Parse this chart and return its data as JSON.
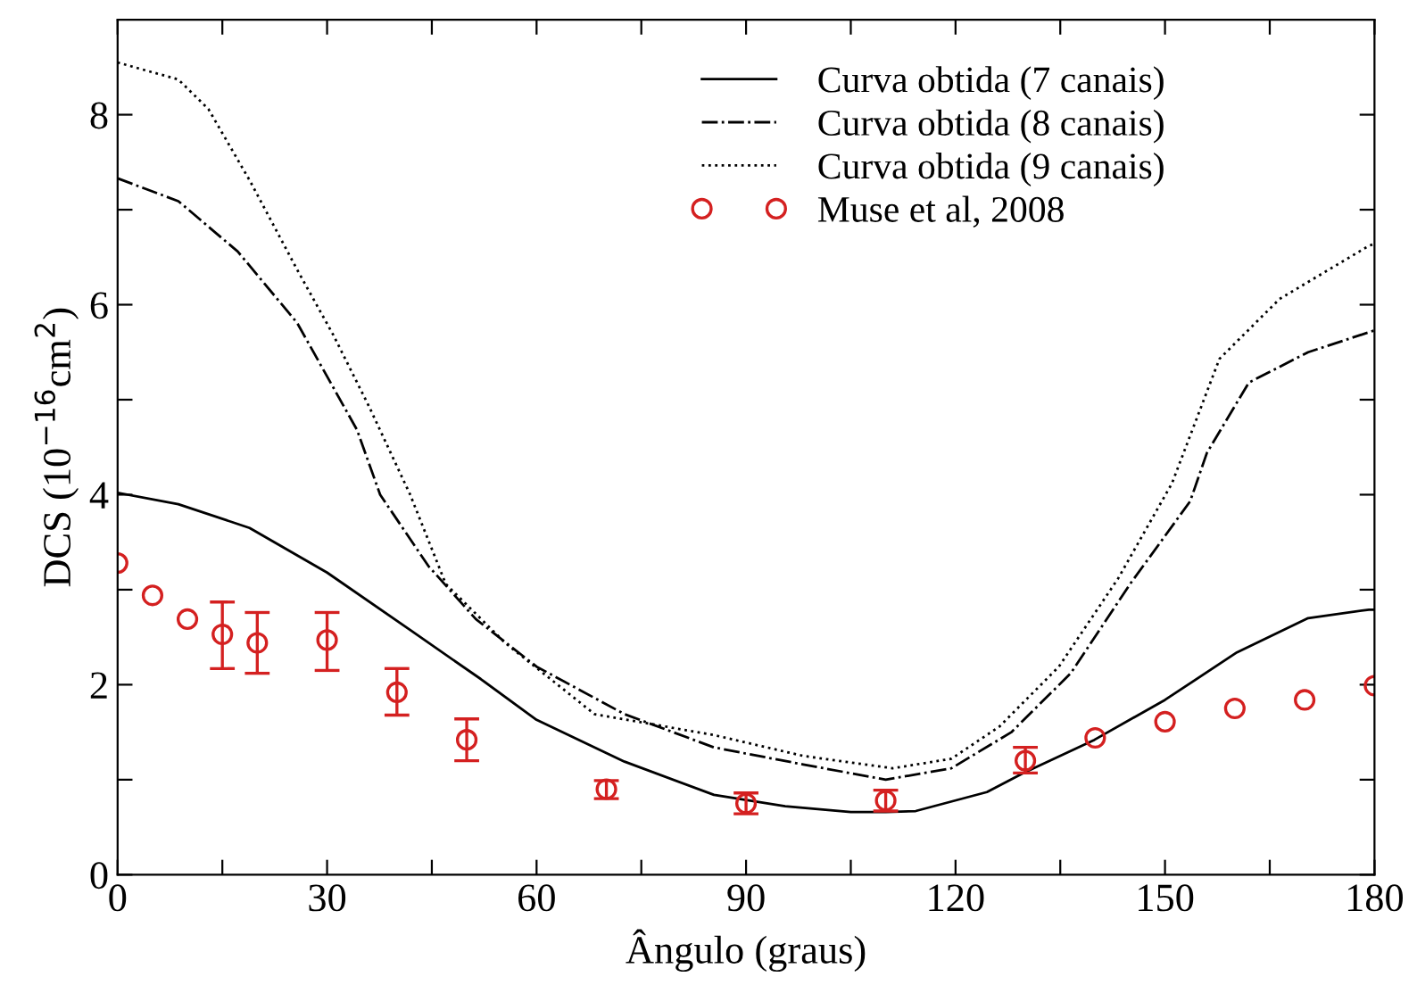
{
  "chart_data": {
    "type": "line",
    "xlabel": "Ângulo (graus)",
    "ylabel": "DCS (10$^{−16}$cm$^{2}$)",
    "xlim": [
      0,
      180
    ],
    "ylim": [
      0,
      9
    ],
    "xticks": [
      0,
      {
        "value": 15,
        "label": null
      },
      30,
      {
        "value": 45,
        "label": null
      },
      60,
      {
        "value": 75,
        "label": null
      },
      90,
      {
        "value": 105,
        "label": null
      },
      120,
      {
        "value": 135,
        "label": null
      },
      150,
      {
        "value": 165,
        "label": null
      },
      180
    ],
    "yticks": [
      0,
      {
        "value": 1,
        "label": null
      },
      2,
      {
        "value": 3,
        "label": null
      },
      4,
      {
        "value": 5,
        "label": null
      },
      6,
      {
        "value": 7,
        "label": null
      },
      8
    ],
    "legend": "top right",
    "grid": false,
    "series": [
      {
        "name": "Curva obtida (7 canais)",
        "line_style": "solid",
        "color": "#000000",
        "x": [
          0,
          8.7,
          18.9,
          30,
          42,
          52,
          60,
          72.6,
          85.4,
          95.6,
          105,
          110,
          114.3,
          124.5,
          129.7,
          139.9,
          150,
          160.3,
          170.5,
          179.2,
          180
        ],
        "values": [
          4.02,
          3.9,
          3.65,
          3.18,
          2.57,
          2.06,
          1.63,
          1.19,
          0.84,
          0.72,
          0.66,
          0.66,
          0.67,
          0.87,
          1.07,
          1.42,
          1.84,
          2.34,
          2.7,
          2.79,
          2.79
        ]
      },
      {
        "name": "Curva obtida (8 canais)",
        "line_style": "dashdot",
        "color": "#000000",
        "x": [
          0,
          8.7,
          17.2,
          25.7,
          34.3,
          37.6,
          44.5,
          51.3,
          60,
          72.6,
          85.4,
          98.2,
          110,
          119.4,
          128,
          136.5,
          145,
          153.6,
          156,
          162,
          170.5,
          179.2,
          180
        ],
        "values": [
          7.33,
          7.09,
          6.56,
          5.81,
          4.68,
          4.0,
          3.25,
          2.69,
          2.19,
          1.69,
          1.34,
          1.16,
          1.0,
          1.12,
          1.5,
          2.12,
          3.06,
          3.93,
          4.44,
          5.18,
          5.5,
          5.71,
          5.73
        ]
      },
      {
        "name": "Curva obtida (9 canais)",
        "line_style": "dotted",
        "color": "#000000",
        "x": [
          0,
          8.7,
          13,
          18.9,
          25.7,
          30.9,
          36,
          41.9,
          47,
          55.5,
          68.3,
          85.4,
          98.2,
          111,
          119.4,
          126.3,
          134.8,
          143.3,
          151,
          157.8,
          166.4,
          179.2,
          180
        ],
        "values": [
          8.55,
          8.37,
          8.06,
          7.31,
          6.37,
          5.68,
          4.93,
          4.0,
          3.06,
          2.44,
          1.69,
          1.47,
          1.25,
          1.12,
          1.22,
          1.56,
          2.19,
          3.12,
          4.12,
          5.43,
          6.06,
          6.62,
          6.64
        ]
      },
      {
        "name": "Muse et al, 2008",
        "type": "scatter",
        "marker": "circle",
        "color": "#d42020",
        "x": [
          0,
          5,
          10,
          15,
          20,
          30,
          40,
          50,
          70,
          90,
          110,
          130,
          140,
          150,
          160,
          170,
          180
        ],
        "values": [
          3.28,
          2.94,
          2.69,
          2.53,
          2.44,
          2.47,
          1.92,
          1.42,
          0.9,
          0.75,
          0.78,
          1.2,
          1.44,
          1.61,
          1.75,
          1.84,
          1.99
        ],
        "errors": [
          null,
          null,
          null,
          [
            2.17,
            2.87
          ],
          [
            2.12,
            2.76
          ],
          [
            2.15,
            2.76
          ],
          [
            1.68,
            2.17
          ],
          [
            1.2,
            1.64
          ],
          [
            0.8,
            0.99
          ],
          [
            0.64,
            0.86
          ],
          [
            0.67,
            0.89
          ],
          [
            1.07,
            1.34
          ],
          null,
          null,
          null,
          null,
          null
        ]
      }
    ]
  }
}
